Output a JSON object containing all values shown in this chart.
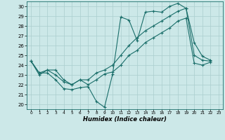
{
  "xlabel": "Humidex (Indice chaleur)",
  "xlim": [
    -0.5,
    23.5
  ],
  "ylim": [
    19.5,
    30.5
  ],
  "yticks": [
    20,
    21,
    22,
    23,
    24,
    25,
    26,
    27,
    28,
    29,
    30
  ],
  "xticks": [
    0,
    1,
    2,
    3,
    4,
    5,
    6,
    7,
    8,
    9,
    10,
    11,
    12,
    13,
    14,
    15,
    16,
    17,
    18,
    19,
    20,
    21,
    22,
    23
  ],
  "bg_color": "#cce8e8",
  "line_color": "#1a6e6a",
  "grid_color": "#aacece",
  "series": [
    [
      24.4,
      23.2,
      23.2,
      22.5,
      21.6,
      21.5,
      21.7,
      21.8,
      20.3,
      19.7,
      23.1,
      28.9,
      28.6,
      26.5,
      29.4,
      29.5,
      29.4,
      30.0,
      30.3,
      29.8,
      26.3,
      24.9,
      24.5
    ],
    [
      24.4,
      23.2,
      23.5,
      23.0,
      22.3,
      22.0,
      22.5,
      22.0,
      22.5,
      23.1,
      23.3,
      24.0,
      25.0,
      25.5,
      26.3,
      26.8,
      27.3,
      27.8,
      28.5,
      28.8,
      24.2,
      24.0,
      24.3
    ],
    [
      24.4,
      23.0,
      23.5,
      23.5,
      22.5,
      22.0,
      22.5,
      22.5,
      23.2,
      23.5,
      24.0,
      25.0,
      26.0,
      26.8,
      27.5,
      28.0,
      28.5,
      29.0,
      29.5,
      29.8,
      25.0,
      24.5,
      24.4
    ]
  ]
}
